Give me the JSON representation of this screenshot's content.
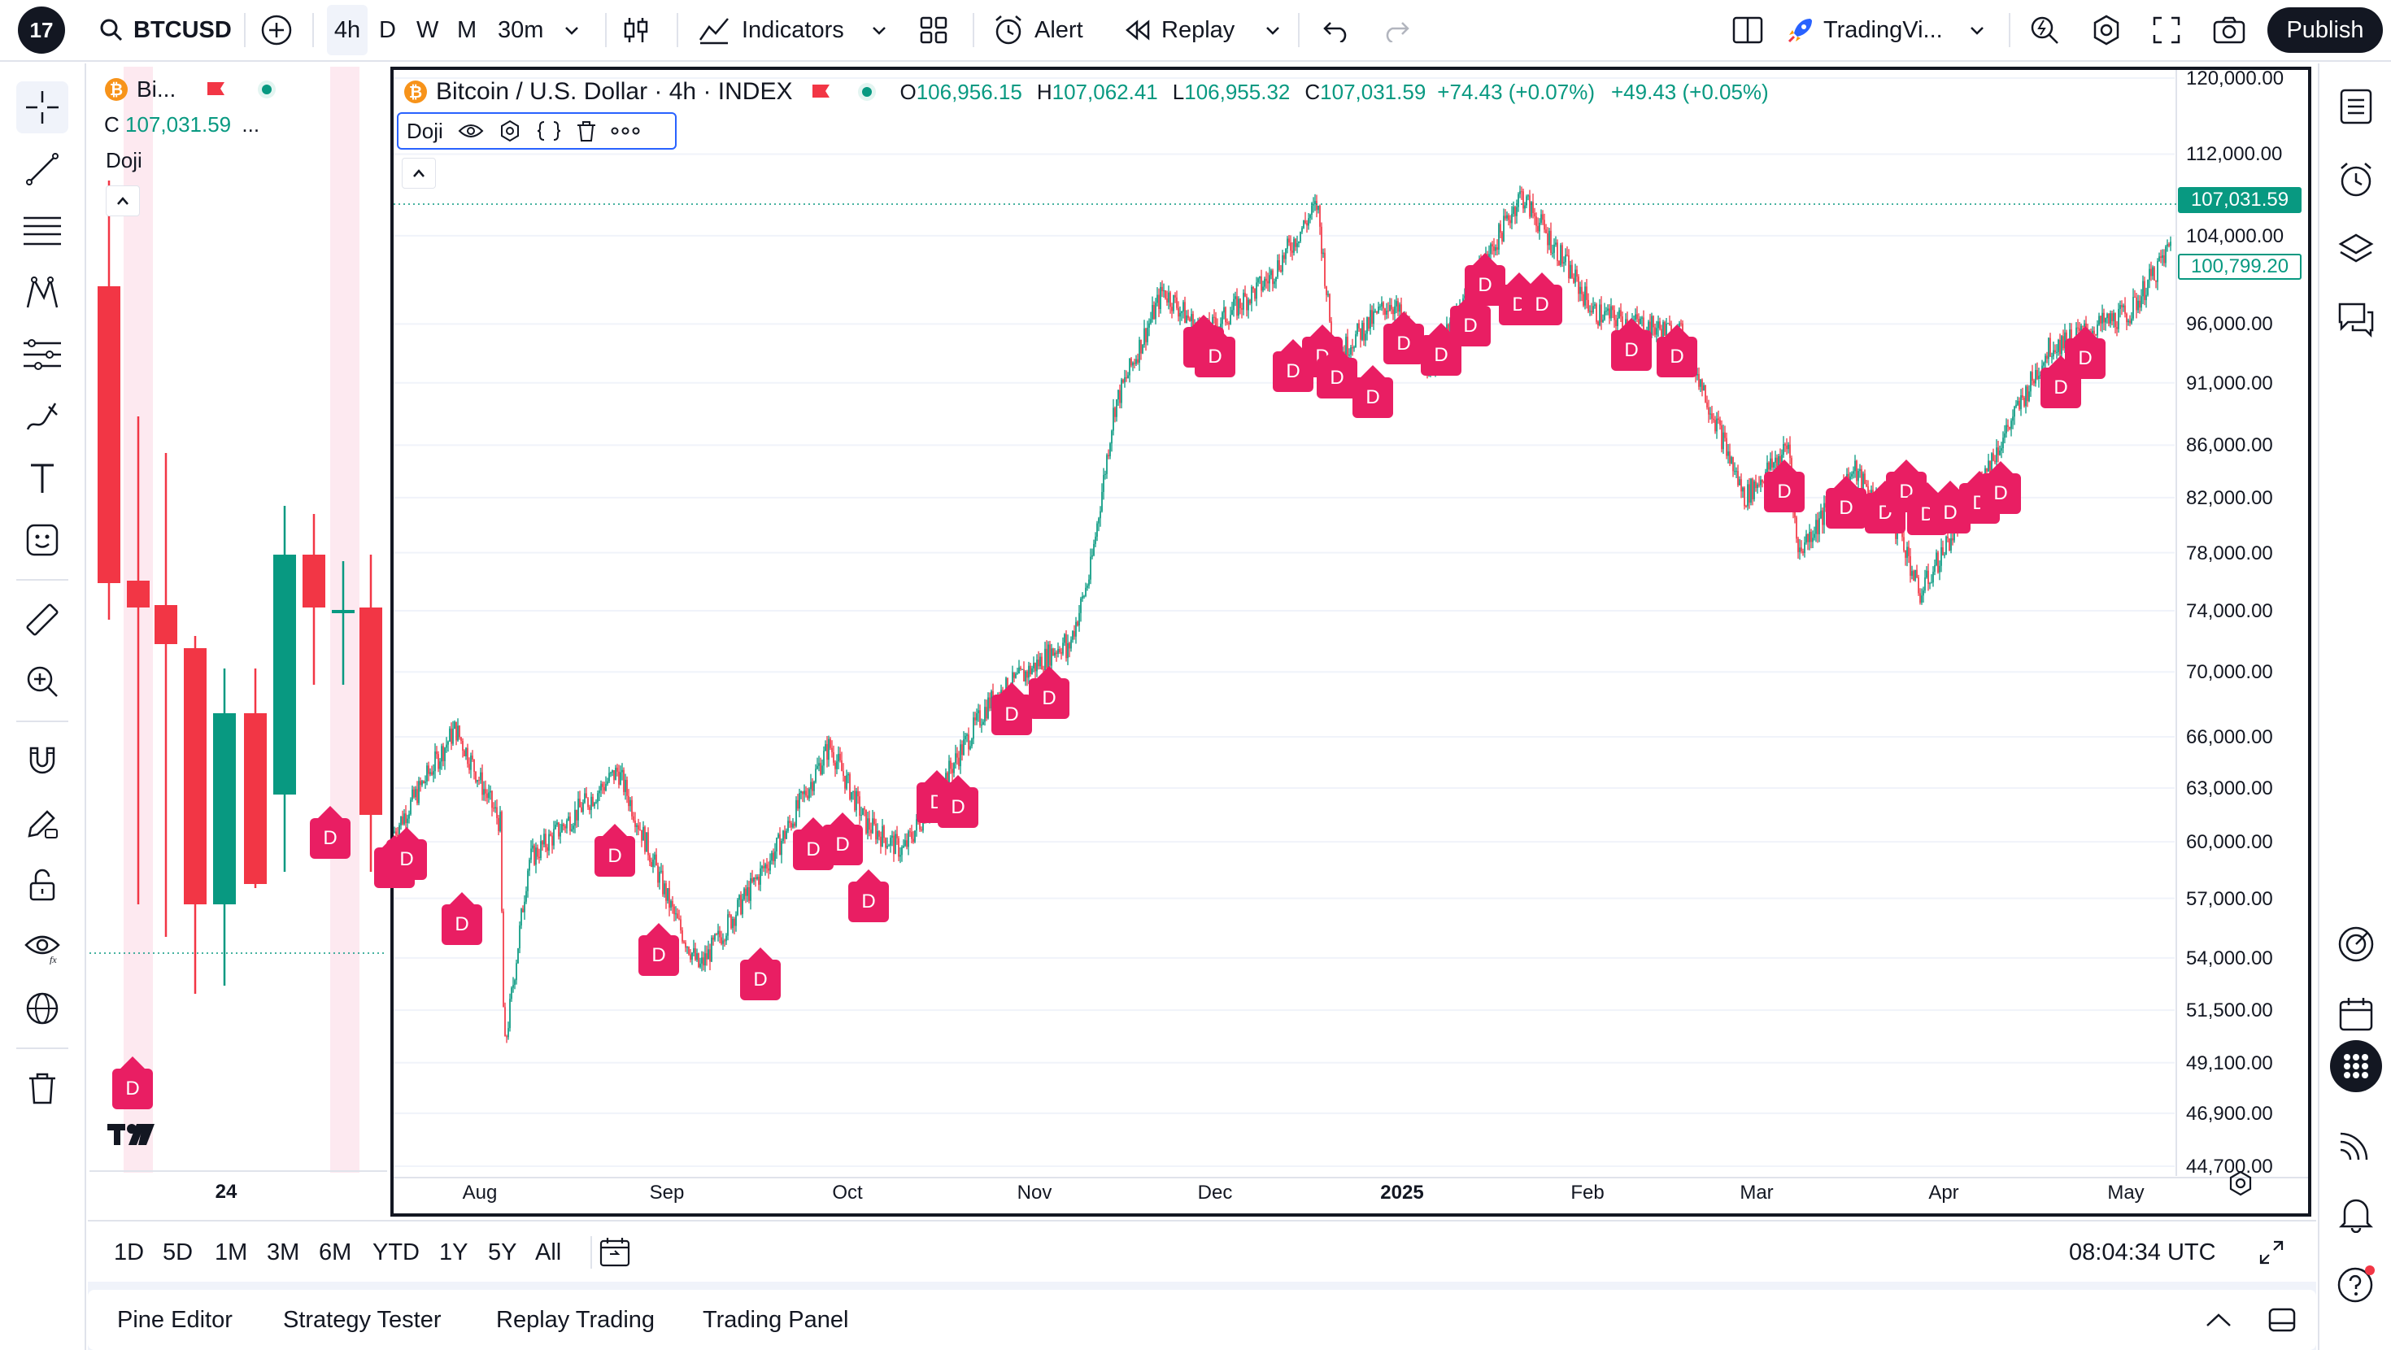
{
  "topbar": {
    "symbol": "BTCUSD",
    "intervals": [
      "4h",
      "D",
      "W",
      "M",
      "30m"
    ],
    "indicators": "Indicators",
    "alert": "Alert",
    "replay": "Replay",
    "layout_name": "TradingVi...",
    "publish": "Publish"
  },
  "mini_chart": {
    "symbol": "Bi...",
    "close_prefix": "C",
    "close": "107,031.59",
    "ellipsis": "...",
    "indicator": "Doji",
    "date_label": "24",
    "marker": "D"
  },
  "legend": {
    "title": "Bitcoin / U.S. Dollar · 4h · INDEX",
    "o_label": "O",
    "o": "106,956.15",
    "h_label": "H",
    "h": "107,062.41",
    "l_label": "L",
    "l": "106,955.32",
    "c_label": "C",
    "c": "107,031.59",
    "change": "+74.43 (+0.07%)",
    "change2": "+49.43 (+0.05%)",
    "indicator": "Doji"
  },
  "price_axis": {
    "ticks": [
      "120,000.00",
      "112,000.00",
      "104,000.00",
      "96,000.00",
      "91,000.00",
      "86,000.00",
      "82,000.00",
      "78,000.00",
      "74,000.00",
      "70,000.00",
      "66,000.00",
      "63,000.00",
      "60,000.00",
      "57,000.00",
      "54,000.00",
      "51,500.00",
      "49,100.00",
      "46,900.00",
      "44,700.00"
    ],
    "last_price": "107,031.59",
    "line_price": "100,799.20"
  },
  "time_axis": {
    "ticks": [
      "Aug",
      "Sep",
      "Oct",
      "Nov",
      "Dec",
      "2025",
      "Feb",
      "Mar",
      "Apr",
      "May"
    ]
  },
  "marker_label": "D",
  "bottombar": {
    "ranges": [
      "1D",
      "5D",
      "1M",
      "3M",
      "6M",
      "YTD",
      "1Y",
      "5Y",
      "All"
    ],
    "clock": "08:04:34 UTC"
  },
  "panels": {
    "tabs": [
      "Pine Editor",
      "Strategy Tester",
      "Replay Trading",
      "Trading Panel"
    ]
  },
  "colors": {
    "up": "#089981",
    "down": "#f23645",
    "marker": "#e91e63",
    "accent": "#2962ff"
  },
  "chart_data": {
    "type": "candlestick",
    "series_name": "Bitcoin / U.S. Dollar",
    "interval": "4h",
    "y_scale": "log",
    "ylim": [
      44700,
      120000
    ],
    "x_ticks": [
      "Aug",
      "Sep",
      "Oct",
      "Nov",
      "Dec",
      "2025",
      "Feb",
      "Mar",
      "Apr",
      "May"
    ],
    "approx_path": [
      {
        "t": "Jul",
        "p": 60500
      },
      {
        "t": "Jul",
        "p": 66500
      },
      {
        "t": "Aug",
        "p": 61000
      },
      {
        "t": "Aug",
        "p": 49500
      },
      {
        "t": "Aug",
        "p": 59000
      },
      {
        "t": "Aug",
        "p": 64000
      },
      {
        "t": "Sep",
        "p": 56000
      },
      {
        "t": "Sep",
        "p": 53500
      },
      {
        "t": "Sep",
        "p": 60000
      },
      {
        "t": "Sep",
        "p": 65500
      },
      {
        "t": "Oct",
        "p": 61000
      },
      {
        "t": "Oct",
        "p": 59500
      },
      {
        "t": "Oct",
        "p": 68000
      },
      {
        "t": "Oct",
        "p": 72000
      },
      {
        "t": "Nov",
        "p": 69000
      },
      {
        "t": "Nov",
        "p": 76500
      },
      {
        "t": "Nov",
        "p": 89000
      },
      {
        "t": "Nov",
        "p": 99000
      },
      {
        "t": "Dec",
        "p": 95000
      },
      {
        "t": "Dec",
        "p": 100000
      },
      {
        "t": "Dec",
        "p": 107000
      },
      {
        "t": "Dec",
        "p": 93000
      },
      {
        "t": "2025",
        "p": 98000
      },
      {
        "t": "2025",
        "p": 92500
      },
      {
        "t": "Jan",
        "p": 108000
      },
      {
        "t": "Jan",
        "p": 102000
      },
      {
        "t": "Feb",
        "p": 97000
      },
      {
        "t": "Feb",
        "p": 95000
      },
      {
        "t": "Mar",
        "p": 82000
      },
      {
        "t": "Mar",
        "p": 86000
      },
      {
        "t": "Mar",
        "p": 78000
      },
      {
        "t": "Apr",
        "p": 84000
      },
      {
        "t": "Apr",
        "p": 79000
      },
      {
        "t": "Apr",
        "p": 75000
      },
      {
        "t": "Apr",
        "p": 85000
      },
      {
        "t": "May",
        "p": 94000
      },
      {
        "t": "May",
        "p": 97000
      },
      {
        "t": "May",
        "p": 103500
      }
    ],
    "last_close": 107031.59
  }
}
